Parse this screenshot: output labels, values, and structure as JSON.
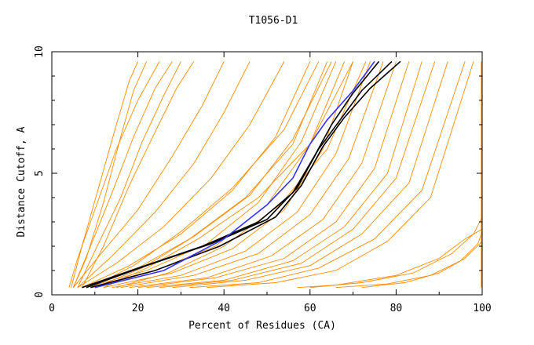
{
  "chart_data": {
    "type": "line",
    "title": "T1056-D1",
    "xlabel": "Percent of Residues (CA)",
    "ylabel": "Distance Cutoff, A",
    "xlim": [
      0,
      100
    ],
    "ylim": [
      0,
      10
    ],
    "x_ticks": [
      "0",
      "20",
      "40",
      "60",
      "80",
      "100"
    ],
    "y_ticks": [
      "0",
      "5",
      "10"
    ],
    "grid": false,
    "legend": "none",
    "colors": {
      "models": "#ff8c00",
      "highlight_black": "#000000",
      "highlight_blue": "#3333ff"
    },
    "series": [
      {
        "group": "models",
        "x": [
          4,
          6,
          10,
          15,
          20,
          25
        ],
        "y": [
          0.3,
          1.5,
          3.5,
          6,
          8,
          9.6
        ]
      },
      {
        "group": "models",
        "x": [
          4.5,
          7,
          11,
          15,
          18,
          20
        ],
        "y": [
          0.3,
          2,
          4.5,
          7,
          8.8,
          9.6
        ]
      },
      {
        "group": "models",
        "x": [
          5,
          8,
          12,
          16,
          19,
          22
        ],
        "y": [
          0.3,
          1.5,
          3.8,
          6.5,
          8.4,
          9.6
        ]
      },
      {
        "group": "models",
        "x": [
          5,
          9,
          14,
          19,
          24,
          28
        ],
        "y": [
          0.3,
          2,
          4.2,
          6.5,
          8.5,
          9.6
        ]
      },
      {
        "group": "models",
        "x": [
          6,
          10,
          16,
          21,
          26,
          30
        ],
        "y": [
          0.3,
          1.8,
          4,
          6.3,
          8.2,
          9.6
        ]
      },
      {
        "group": "models",
        "x": [
          7,
          12,
          18,
          24,
          29,
          33
        ],
        "y": [
          0.3,
          2,
          4.5,
          6.7,
          8.5,
          9.6
        ]
      },
      {
        "group": "models",
        "x": [
          5,
          11,
          20,
          28,
          35,
          40
        ],
        "y": [
          0.3,
          1.6,
          3.5,
          5.7,
          7.8,
          9.6
        ]
      },
      {
        "group": "models",
        "x": [
          6,
          14,
          24,
          33,
          40,
          46
        ],
        "y": [
          0.3,
          1.6,
          3.4,
          5.4,
          7.5,
          9.6
        ]
      },
      {
        "group": "models",
        "x": [
          6,
          15,
          26,
          37,
          46,
          54
        ],
        "y": [
          0.3,
          1.3,
          2.8,
          4.8,
          7,
          9.6
        ]
      },
      {
        "group": "models",
        "x": [
          7,
          18,
          30,
          42,
          52,
          60
        ],
        "y": [
          0.3,
          1.2,
          2.5,
          4.3,
          6.5,
          9.6
        ]
      },
      {
        "group": "models",
        "x": [
          8,
          20,
          32,
          45,
          56,
          64
        ],
        "y": [
          0.3,
          1.1,
          2.3,
          4,
          6.2,
          9.6
        ]
      },
      {
        "group": "models",
        "x": [
          8,
          22,
          36,
          48,
          58,
          66
        ],
        "y": [
          0.3,
          1,
          2.1,
          3.8,
          6.3,
          9.6
        ]
      },
      {
        "group": "models",
        "x": [
          10,
          24,
          38,
          50,
          60,
          68
        ],
        "y": [
          0.3,
          1,
          2,
          3.7,
          6.2,
          9.6
        ]
      },
      {
        "group": "models",
        "x": [
          12,
          28,
          42,
          54,
          63,
          70
        ],
        "y": [
          0.3,
          0.9,
          1.9,
          3.5,
          6,
          9.6
        ]
      },
      {
        "group": "models",
        "x": [
          14,
          30,
          45,
          57,
          66,
          74
        ],
        "y": [
          0.3,
          0.8,
          1.8,
          3.4,
          5.8,
          9.6
        ]
      },
      {
        "group": "models",
        "x": [
          16,
          33,
          48,
          60,
          69,
          77
        ],
        "y": [
          0.3,
          0.8,
          1.7,
          3.3,
          5.6,
          9.6
        ]
      },
      {
        "group": "models",
        "x": [
          18,
          36,
          51,
          63,
          72,
          80
        ],
        "y": [
          0.3,
          0.7,
          1.6,
          3.1,
          5.4,
          9.6
        ]
      },
      {
        "group": "models",
        "x": [
          20,
          38,
          54,
          66,
          75,
          83
        ],
        "y": [
          0.3,
          0.7,
          1.5,
          3,
          5.2,
          9.6
        ]
      },
      {
        "group": "models",
        "x": [
          22,
          40,
          56,
          68,
          78,
          86
        ],
        "y": [
          0.3,
          0.6,
          1.4,
          2.8,
          5,
          9.6
        ]
      },
      {
        "group": "models",
        "x": [
          25,
          42,
          58,
          70,
          80,
          89
        ],
        "y": [
          0.3,
          0.6,
          1.3,
          2.7,
          4.8,
          9.6
        ]
      },
      {
        "group": "models",
        "x": [
          28,
          45,
          60,
          72,
          83,
          92
        ],
        "y": [
          0.3,
          0.6,
          1.2,
          2.5,
          4.6,
          9.6
        ]
      },
      {
        "group": "models",
        "x": [
          32,
          48,
          62,
          75,
          86,
          96
        ],
        "y": [
          0.3,
          0.5,
          1.1,
          2.3,
          4.3,
          9.6
        ]
      },
      {
        "group": "models",
        "x": [
          36,
          52,
          66,
          78,
          88,
          98
        ],
        "y": [
          0.3,
          0.5,
          1,
          2.2,
          4,
          9.6
        ]
      },
      {
        "group": "models",
        "x": [
          12,
          22,
          34,
          48,
          60,
          70
        ],
        "y": [
          0.3,
          1.1,
          2.3,
          4,
          6.2,
          9.6
        ]
      },
      {
        "group": "models",
        "x": [
          15,
          27,
          40,
          53,
          64,
          73
        ],
        "y": [
          0.3,
          0.9,
          2,
          3.7,
          6,
          9.6
        ]
      },
      {
        "group": "models",
        "x": [
          9,
          19,
          30,
          42,
          54,
          62
        ],
        "y": [
          0.3,
          1.2,
          2.6,
          4.4,
          6.8,
          9.6
        ]
      },
      {
        "group": "models",
        "x": [
          10,
          21,
          33,
          46,
          56,
          65
        ],
        "y": [
          0.3,
          1.1,
          2.4,
          4.1,
          6.4,
          9.6
        ]
      },
      {
        "group": "models",
        "x": [
          57,
          66,
          80,
          90,
          96,
          100
        ],
        "y": [
          0.3,
          0.4,
          0.8,
          1.5,
          2.3,
          2.7
        ]
      },
      {
        "group": "models",
        "x": [
          60,
          72,
          84,
          93,
          98,
          100
        ],
        "y": [
          0.3,
          0.5,
          0.9,
          1.7,
          2.5,
          3.2
        ]
      },
      {
        "group": "models",
        "x": [
          66,
          78,
          88,
          95,
          99,
          100
        ],
        "y": [
          0.3,
          0.45,
          0.8,
          1.4,
          2.1,
          2.6
        ]
      },
      {
        "group": "models",
        "x": [
          72,
          82,
          90,
          96,
          100
        ],
        "y": [
          0.3,
          0.5,
          0.9,
          1.5,
          2.2
        ]
      },
      {
        "group": "models",
        "x": [
          99.8,
          99.8,
          99.8,
          99.8
        ],
        "y": [
          0.3,
          3,
          6,
          9.6
        ]
      },
      {
        "group": "highlight_black",
        "x": [
          7,
          20,
          35,
          48,
          56,
          61,
          65,
          70,
          76
        ],
        "y": [
          0.3,
          1.1,
          2,
          3,
          4.2,
          5.7,
          7,
          8.3,
          9.6
        ]
      },
      {
        "group": "highlight_black",
        "x": [
          8,
          22,
          37,
          50,
          57,
          62,
          67,
          72,
          79
        ],
        "y": [
          0.3,
          1.2,
          2.1,
          3.1,
          4.4,
          6,
          7.2,
          8.4,
          9.6
        ]
      },
      {
        "group": "highlight_black",
        "x": [
          9,
          24,
          39,
          52,
          58,
          63,
          68,
          74,
          81
        ],
        "y": [
          0.3,
          1,
          2,
          3.2,
          4.5,
          6.1,
          7.3,
          8.5,
          9.6
        ]
      },
      {
        "group": "highlight_blue",
        "x": [
          10,
          26,
          40,
          50,
          56,
          60,
          64,
          70,
          75
        ],
        "y": [
          0.3,
          1,
          2.3,
          3.7,
          4.8,
          6.2,
          7.2,
          8.4,
          9.6
        ]
      }
    ]
  }
}
